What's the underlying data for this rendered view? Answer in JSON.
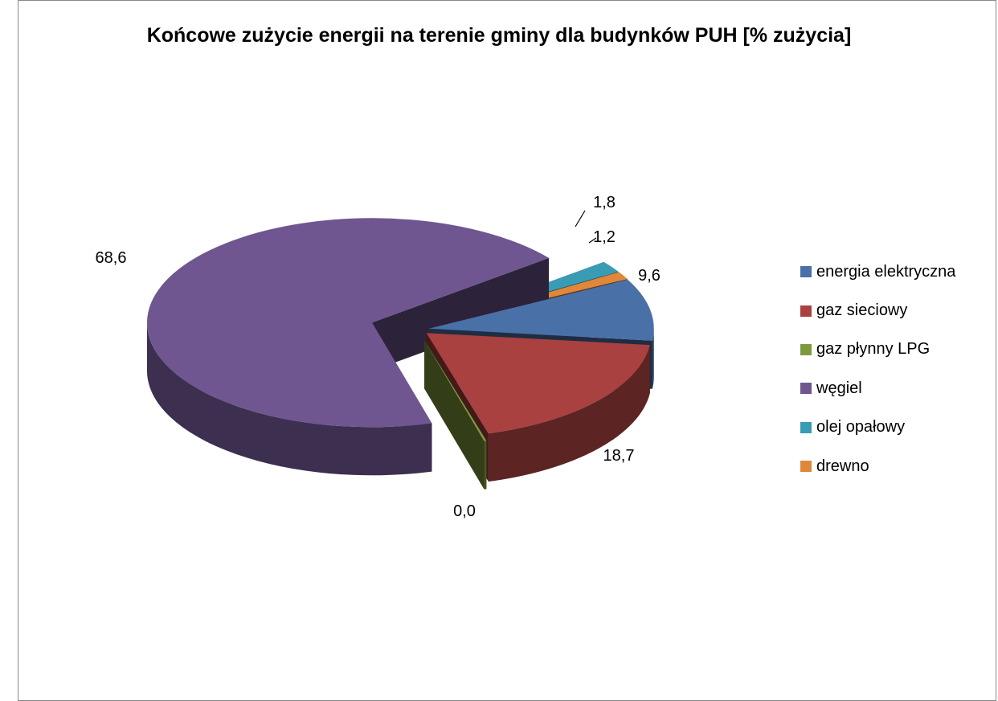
{
  "chart_data": {
    "type": "pie",
    "title": "Końcowe zużycie energii na terenie gminy dla budynków PUH [% zużycia]",
    "legend_position": "right",
    "slices": [
      {
        "label": "energia elektryczna",
        "value": 9.6,
        "display": "9,6",
        "color": "#4A70A8"
      },
      {
        "label": "gaz sieciowy",
        "value": 18.7,
        "display": "18,7",
        "color": "#A8413F"
      },
      {
        "label": "gaz płynny LPG",
        "value": 0.0,
        "display": "0,0",
        "color": "#7F9A3E"
      },
      {
        "label": "węgiel",
        "value": 68.6,
        "display": "68,6",
        "color": "#6F5690"
      },
      {
        "label": "olej opałowy",
        "value": 1.8,
        "display": "1,8",
        "color": "#3A9BB4"
      },
      {
        "label": "drewno",
        "value": 1.2,
        "display": "1,2",
        "color": "#E0873A"
      }
    ]
  }
}
